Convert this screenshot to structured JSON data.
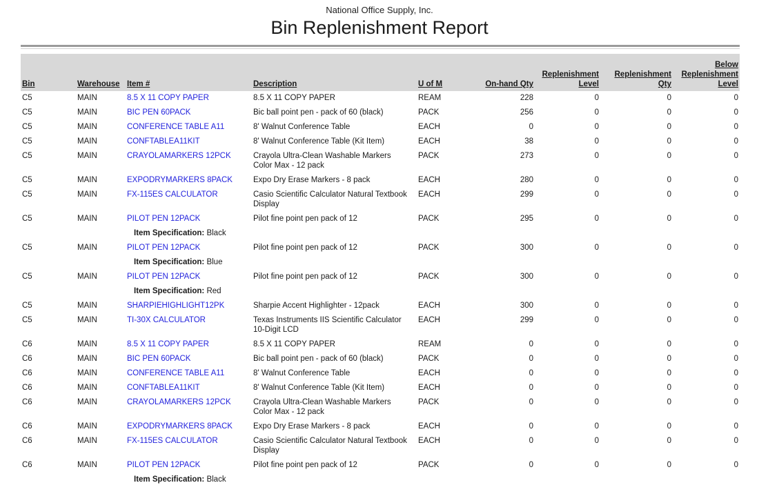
{
  "report": {
    "company": "National Office Supply, Inc.",
    "title": "Bin Replenishment Report"
  },
  "colors": {
    "link_blue": "#2323dd",
    "header_band_gray": "#d8d8d8",
    "rule_dark_gray": "#9a9a9a",
    "rule_light_gray": "#cfcfcf"
  },
  "table": {
    "columns": [
      {
        "lines": [
          "Bin"
        ],
        "align": "l"
      },
      {
        "lines": [
          "Warehouse"
        ],
        "align": "l"
      },
      {
        "lines": [
          "Item #"
        ],
        "align": "l"
      },
      {
        "lines": [
          "Description"
        ],
        "align": "l"
      },
      {
        "lines": [
          "U of M"
        ],
        "align": "l"
      },
      {
        "lines": [
          "On-hand Qty"
        ],
        "align": "r"
      },
      {
        "lines": [
          "Replenishment",
          "Level"
        ],
        "align": "r"
      },
      {
        "lines": [
          "Replenishment",
          "Qty"
        ],
        "align": "r"
      },
      {
        "lines": [
          "Below",
          "Replenishment",
          "Level"
        ],
        "align": "r"
      }
    ],
    "item_spec_label": "Item Specification:",
    "rows": [
      {
        "bin": "C5",
        "warehouse": "MAIN",
        "item": "8.5 X 11 COPY PAPER",
        "description": "8.5 X 11 COPY PAPER",
        "uom": "REAM",
        "onhand": "228",
        "repl_level": "0",
        "repl_qty": "0",
        "below_repl": "0"
      },
      {
        "bin": "C5",
        "warehouse": "MAIN",
        "item": "BIC PEN 60PACK",
        "description": "Bic ball point pen - pack of 60 (black)",
        "uom": "PACK",
        "onhand": "256",
        "repl_level": "0",
        "repl_qty": "0",
        "below_repl": "0"
      },
      {
        "bin": "C5",
        "warehouse": "MAIN",
        "item": "CONFERENCE TABLE A11",
        "description": "8' Walnut Conference Table",
        "uom": "EACH",
        "onhand": "0",
        "repl_level": "0",
        "repl_qty": "0",
        "below_repl": "0"
      },
      {
        "bin": "C5",
        "warehouse": "MAIN",
        "item": "CONFTABLEA11KIT",
        "description": "8' Walnut Conference Table (Kit Item)",
        "uom": "EACH",
        "onhand": "38",
        "repl_level": "0",
        "repl_qty": "0",
        "below_repl": "0"
      },
      {
        "bin": "C5",
        "warehouse": "MAIN",
        "item": "CRAYOLAMARKERS 12PCK",
        "description": "Crayola Ultra-Clean Washable Markers Color Max - 12 pack",
        "uom": "PACK",
        "onhand": "273",
        "repl_level": "0",
        "repl_qty": "0",
        "below_repl": "0"
      },
      {
        "bin": "C5",
        "warehouse": "MAIN",
        "item": "EXPODRYMARKERS 8PACK",
        "description": "Expo Dry Erase Markers - 8 pack",
        "uom": "EACH",
        "onhand": "280",
        "repl_level": "0",
        "repl_qty": "0",
        "below_repl": "0"
      },
      {
        "bin": "C5",
        "warehouse": "MAIN",
        "item": "FX-115ES CALCULATOR",
        "description": "Casio Scientific Calculator Natural Textbook Display",
        "uom": "EACH",
        "onhand": "299",
        "repl_level": "0",
        "repl_qty": "0",
        "below_repl": "0"
      },
      {
        "bin": "C5",
        "warehouse": "MAIN",
        "item": "PILOT PEN 12PACK",
        "description": "Pilot fine point pen pack of 12",
        "uom": "PACK",
        "onhand": "295",
        "repl_level": "0",
        "repl_qty": "0",
        "below_repl": "0",
        "spec": "Black"
      },
      {
        "bin": "C5",
        "warehouse": "MAIN",
        "item": "PILOT PEN 12PACK",
        "description": "Pilot fine point pen pack of 12",
        "uom": "PACK",
        "onhand": "300",
        "repl_level": "0",
        "repl_qty": "0",
        "below_repl": "0",
        "spec": "Blue"
      },
      {
        "bin": "C5",
        "warehouse": "MAIN",
        "item": "PILOT PEN 12PACK",
        "description": "Pilot fine point pen pack of 12",
        "uom": "PACK",
        "onhand": "300",
        "repl_level": "0",
        "repl_qty": "0",
        "below_repl": "0",
        "spec": "Red"
      },
      {
        "bin": "C5",
        "warehouse": "MAIN",
        "item": "SHARPIEHIGHLIGHT12PK",
        "description": "Sharpie Accent Highlighter - 12pack",
        "uom": "EACH",
        "onhand": "300",
        "repl_level": "0",
        "repl_qty": "0",
        "below_repl": "0"
      },
      {
        "bin": "C5",
        "warehouse": "MAIN",
        "item": "TI-30X CALCULATOR",
        "description": "Texas Instruments IIS Scientific Calculator 10-Digit LCD",
        "uom": "EACH",
        "onhand": "299",
        "repl_level": "0",
        "repl_qty": "0",
        "below_repl": "0"
      },
      {
        "bin": "C6",
        "warehouse": "MAIN",
        "item": "8.5 X 11 COPY PAPER",
        "description": "8.5 X 11 COPY PAPER",
        "uom": "REAM",
        "onhand": "0",
        "repl_level": "0",
        "repl_qty": "0",
        "below_repl": "0"
      },
      {
        "bin": "C6",
        "warehouse": "MAIN",
        "item": "BIC PEN 60PACK",
        "description": "Bic ball point pen - pack of 60 (black)",
        "uom": "PACK",
        "onhand": "0",
        "repl_level": "0",
        "repl_qty": "0",
        "below_repl": "0"
      },
      {
        "bin": "C6",
        "warehouse": "MAIN",
        "item": "CONFERENCE TABLE A11",
        "description": "8' Walnut Conference Table",
        "uom": "EACH",
        "onhand": "0",
        "repl_level": "0",
        "repl_qty": "0",
        "below_repl": "0"
      },
      {
        "bin": "C6",
        "warehouse": "MAIN",
        "item": "CONFTABLEA11KIT",
        "description": "8' Walnut Conference Table (Kit Item)",
        "uom": "EACH",
        "onhand": "0",
        "repl_level": "0",
        "repl_qty": "0",
        "below_repl": "0"
      },
      {
        "bin": "C6",
        "warehouse": "MAIN",
        "item": "CRAYOLAMARKERS 12PCK",
        "description": "Crayola Ultra-Clean Washable Markers Color Max - 12 pack",
        "uom": "PACK",
        "onhand": "0",
        "repl_level": "0",
        "repl_qty": "0",
        "below_repl": "0"
      },
      {
        "bin": "C6",
        "warehouse": "MAIN",
        "item": "EXPODRYMARKERS 8PACK",
        "description": "Expo Dry Erase Markers - 8 pack",
        "uom": "EACH",
        "onhand": "0",
        "repl_level": "0",
        "repl_qty": "0",
        "below_repl": "0"
      },
      {
        "bin": "C6",
        "warehouse": "MAIN",
        "item": "FX-115ES CALCULATOR",
        "description": "Casio Scientific Calculator Natural Textbook Display",
        "uom": "EACH",
        "onhand": "0",
        "repl_level": "0",
        "repl_qty": "0",
        "below_repl": "0"
      },
      {
        "bin": "C6",
        "warehouse": "MAIN",
        "item": "PILOT PEN 12PACK",
        "description": "Pilot fine point pen pack of 12",
        "uom": "PACK",
        "onhand": "0",
        "repl_level": "0",
        "repl_qty": "0",
        "below_repl": "0",
        "spec": "Black"
      }
    ]
  }
}
